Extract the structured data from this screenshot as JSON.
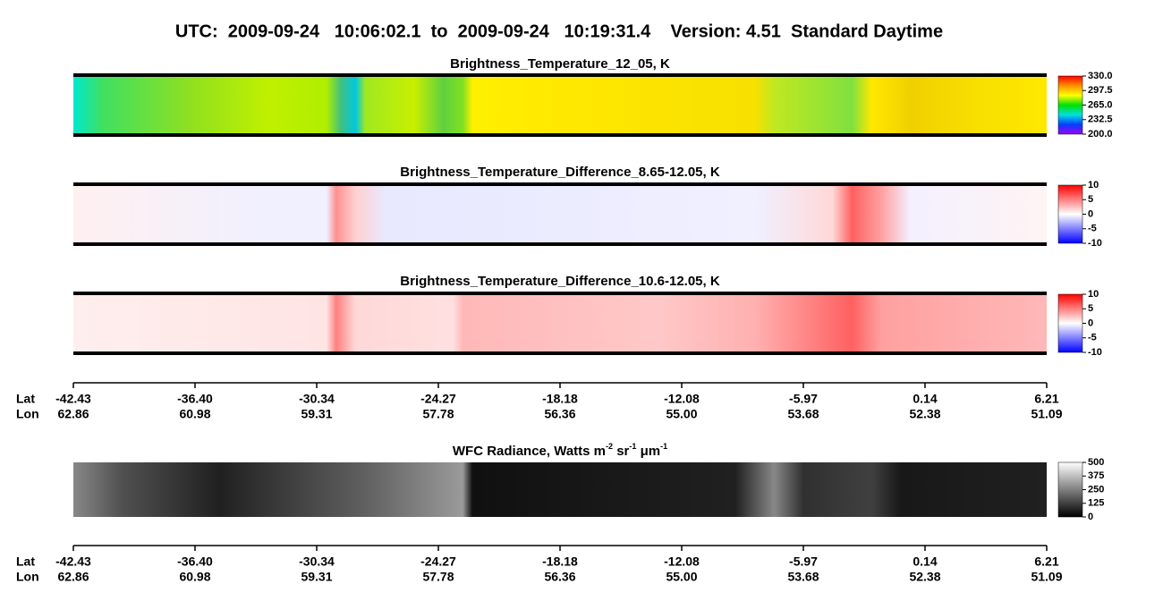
{
  "header": {
    "title": "UTC:  2009-09-24   10:06:02.1  to  2009-09-24   10:19:31.4    Version: 4.51  Standard Daytime"
  },
  "chart_data": [
    {
      "type": "heatmap",
      "title": "Brightness_Temperature_12_05, K",
      "colors": [
        "#ff0000",
        "#ff9000",
        "#ffff00",
        "#00e000",
        "#00e0e0",
        "#0040ff",
        "#a000ff"
      ],
      "ylim": [
        200,
        330
      ],
      "yticks": [
        {
          "value": 330,
          "label": "330.0"
        },
        {
          "value": 297.5,
          "label": "297.5"
        },
        {
          "value": 265,
          "label": "265.0"
        },
        {
          "value": 232.5,
          "label": "232.5"
        },
        {
          "value": 200,
          "label": "200.0"
        }
      ]
    },
    {
      "type": "heatmap",
      "title": "Brightness_Temperature_Difference_8.65-12.05, K",
      "colors": [
        "#ff0000",
        "#ffffff",
        "#0000ff"
      ],
      "ylim": [
        -10,
        10
      ],
      "yticks": [
        10,
        5,
        0,
        -5,
        -10
      ]
    },
    {
      "type": "heatmap",
      "title": "Brightness_Temperature_Difference_10.6-12.05, K",
      "colors": [
        "#ff0000",
        "#ffffff",
        "#0000ff"
      ],
      "ylim": [
        -10,
        10
      ],
      "yticks": [
        10,
        5,
        0,
        -5,
        -10
      ]
    },
    {
      "type": "heatmap",
      "title_parts": [
        "WFC Radiance, Watts m",
        "-2",
        " sr",
        "-1",
        " μm",
        "-1"
      ],
      "colors": [
        "#ffffff",
        "#000000"
      ],
      "ylim": [
        0,
        500
      ],
      "yticks": [
        500,
        375,
        250,
        125,
        0
      ]
    }
  ],
  "position_axes": [
    {
      "row_labels": [
        "Lat",
        "Lon"
      ],
      "lat": [
        "-42.43",
        "-36.40",
        "-30.34",
        "-24.27",
        "-18.18",
        "-12.08",
        "-5.97",
        "0.14",
        "6.21"
      ],
      "lon": [
        "62.86",
        "60.98",
        "59.31",
        "57.78",
        "56.36",
        "55.00",
        "53.68",
        "52.38",
        "51.09"
      ]
    },
    {
      "row_labels": [
        "Lat",
        "Lon"
      ],
      "lat": [
        "-42.43",
        "-36.40",
        "-30.34",
        "-24.27",
        "-18.18",
        "-12.08",
        "-5.97",
        "0.14",
        "6.21"
      ],
      "lon": [
        "62.86",
        "60.98",
        "59.31",
        "57.78",
        "56.36",
        "55.00",
        "53.68",
        "52.38",
        "51.09"
      ]
    }
  ]
}
